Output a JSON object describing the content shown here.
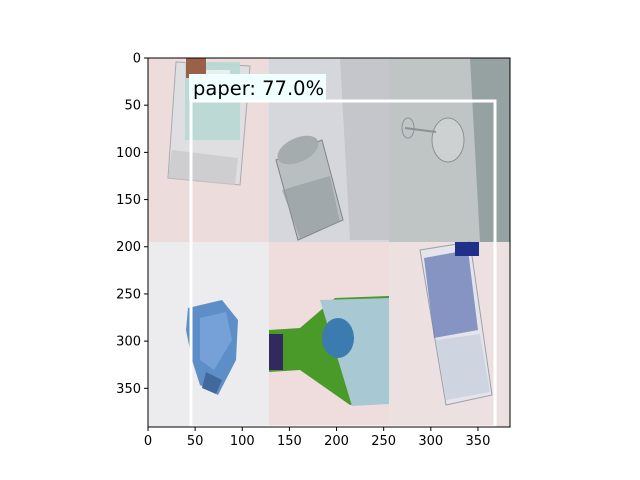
{
  "image": {
    "description_tiles": [
      {
        "content": "clear plastic bottle lying on pale pink surface",
        "bg": "#eddcdc"
      },
      {
        "content": "empty glass jar on light grey surface",
        "bg": "#d6d7dc"
      },
      {
        "content": "wine glass on grey background",
        "bg": "#bfc4c4"
      },
      {
        "content": "crumpled blue paper on white surface",
        "bg": "#ecebed"
      },
      {
        "content": "green glass whisky bottle neck",
        "bg": "#efdcdd"
      },
      {
        "content": "plastic bottle with blue label",
        "bg": "#ece0e0"
      }
    ],
    "width": 384,
    "height": 391
  },
  "axes": {
    "x_ticks": [
      0,
      50,
      100,
      150,
      200,
      250,
      300,
      350
    ],
    "y_ticks": [
      0,
      50,
      100,
      150,
      200,
      250,
      300,
      350
    ],
    "xlim": [
      0,
      384
    ],
    "ylim": [
      391,
      0
    ]
  },
  "detection": {
    "label": "paper: 77.0%",
    "box": {
      "x0": 46,
      "y0": 44,
      "x1": 371,
      "y1": 391
    },
    "box_color": "#ffffff",
    "label_bg": "#f0ffff"
  },
  "colors": {
    "axis": "#000000",
    "bottle_green": "#4a9a2a",
    "bottle_label": "#a8c8d4",
    "blue_paper": "#5e8ec8"
  }
}
